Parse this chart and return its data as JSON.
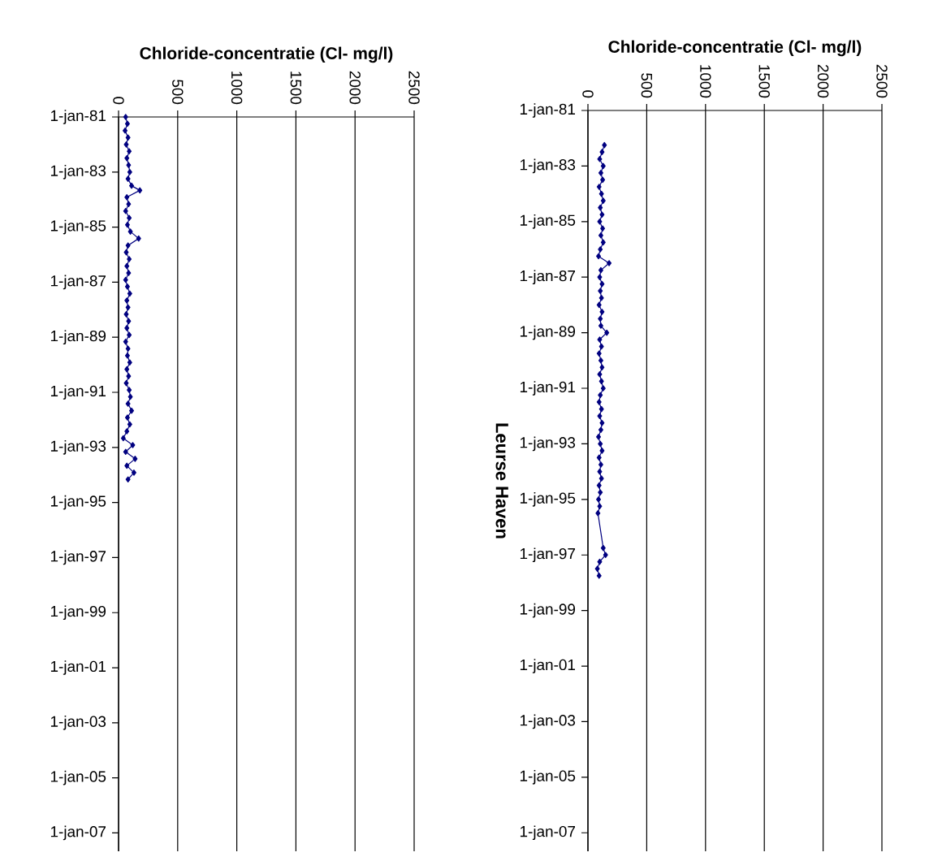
{
  "chart_data": [
    {
      "type": "line",
      "orientation": "horizontal",
      "xlabel": "Chloride-concentratie (Cl- mg/l)",
      "xlim": [
        0,
        2500
      ],
      "xticks": [
        0,
        500,
        1000,
        1500,
        2000,
        2500
      ],
      "ylim": [
        "2007-09-01",
        "1981-01-01"
      ],
      "yticks": [
        {
          "value": "1981-01-01",
          "label": "1-jan-81"
        },
        {
          "value": "1983-01-01",
          "label": "1-jan-83"
        },
        {
          "value": "1985-01-01",
          "label": "1-jan-85"
        },
        {
          "value": "1987-01-01",
          "label": "1-jan-87"
        },
        {
          "value": "1989-01-01",
          "label": "1-jan-89"
        },
        {
          "value": "1991-01-01",
          "label": "1-jan-91"
        },
        {
          "value": "1993-01-01",
          "label": "1-jan-93"
        },
        {
          "value": "1995-01-01",
          "label": "1-jan-95"
        },
        {
          "value": "1997-01-01",
          "label": "1-jan-97"
        },
        {
          "value": "1999-01-01",
          "label": "1-jan-99"
        },
        {
          "value": "2001-01-01",
          "label": "1-jan-01"
        },
        {
          "value": "2003-01-01",
          "label": "1-jan-03"
        },
        {
          "value": "2005-01-01",
          "label": "1-jan-05"
        },
        {
          "value": "2007-01-01",
          "label": "1-jan-07"
        }
      ],
      "grid": "x",
      "marker": "diamond",
      "line_style": "solid",
      "x": [
        "1981-01",
        "1981-04",
        "1981-07",
        "1981-10",
        "1982-01",
        "1982-04",
        "1982-07",
        "1982-10",
        "1983-01",
        "1983-04",
        "1983-07",
        "1983-09",
        "1983-12",
        "1984-03",
        "1984-06",
        "1984-09",
        "1984-12",
        "1985-03",
        "1985-06",
        "1985-09",
        "1985-12",
        "1986-03",
        "1986-06",
        "1986-09",
        "1986-12",
        "1987-03",
        "1987-06",
        "1987-09",
        "1987-12",
        "1988-03",
        "1988-06",
        "1988-09",
        "1988-12",
        "1989-03",
        "1989-06",
        "1989-09",
        "1989-12",
        "1990-03",
        "1990-06",
        "1990-09",
        "1990-12",
        "1991-03",
        "1991-06",
        "1991-09",
        "1991-12",
        "1992-03",
        "1992-06",
        "1992-09",
        "1992-12",
        "1993-03",
        "1993-06",
        "1993-09",
        "1993-12",
        "1994-03"
      ],
      "series": [
        {
          "color": "#000080",
          "values": [
            60,
            75,
            55,
            80,
            65,
            90,
            70,
            85,
            95,
            80,
            110,
            180,
            70,
            85,
            60,
            90,
            75,
            100,
            170,
            80,
            65,
            90,
            70,
            85,
            60,
            75,
            95,
            70,
            80,
            65,
            85,
            70,
            90,
            60,
            80,
            75,
            95,
            70,
            85,
            65,
            90,
            100,
            80,
            110,
            75,
            95,
            70,
            40,
            120,
            60,
            140,
            70,
            130,
            80
          ]
        }
      ]
    },
    {
      "type": "line",
      "orientation": "horizontal",
      "xlabel": "Chloride-concentratie (Cl- mg/l)",
      "ylabel": "Leurse Haven",
      "xlim": [
        0,
        2500
      ],
      "xticks": [
        0,
        500,
        1000,
        1500,
        2000,
        2500
      ],
      "ylim": [
        "2007-09-01",
        "1981-01-01"
      ],
      "yticks": [
        {
          "value": "1981-01-01",
          "label": "1-jan-81"
        },
        {
          "value": "1983-01-01",
          "label": "1-jan-83"
        },
        {
          "value": "1985-01-01",
          "label": "1-jan-85"
        },
        {
          "value": "1987-01-01",
          "label": "1-jan-87"
        },
        {
          "value": "1989-01-01",
          "label": "1-jan-89"
        },
        {
          "value": "1991-01-01",
          "label": "1-jan-91"
        },
        {
          "value": "1993-01-01",
          "label": "1-jan-93"
        },
        {
          "value": "1995-01-01",
          "label": "1-jan-95"
        },
        {
          "value": "1997-01-01",
          "label": "1-jan-97"
        },
        {
          "value": "1999-01-01",
          "label": "1-jan-99"
        },
        {
          "value": "2001-01-01",
          "label": "1-jan-01"
        },
        {
          "value": "2003-01-01",
          "label": "1-jan-03"
        },
        {
          "value": "2005-01-01",
          "label": "1-jan-05"
        },
        {
          "value": "2007-01-01",
          "label": "1-jan-07"
        }
      ],
      "grid": "x",
      "marker": "diamond",
      "line_style": "solid",
      "x": [
        "1982-04",
        "1982-07",
        "1982-10",
        "1983-01",
        "1983-04",
        "1983-07",
        "1983-10",
        "1984-01",
        "1984-04",
        "1984-07",
        "1984-10",
        "1985-01",
        "1985-04",
        "1985-07",
        "1985-10",
        "1986-01",
        "1986-04",
        "1986-07",
        "1986-10",
        "1987-01",
        "1987-04",
        "1987-07",
        "1987-10",
        "1988-01",
        "1988-04",
        "1988-07",
        "1988-10",
        "1989-01",
        "1989-04",
        "1989-07",
        "1989-10",
        "1990-01",
        "1990-04",
        "1990-07",
        "1990-10",
        "1991-01",
        "1991-04",
        "1991-07",
        "1991-10",
        "1992-01",
        "1992-04",
        "1992-07",
        "1992-10",
        "1993-01",
        "1993-04",
        "1993-07",
        "1993-10",
        "1994-01",
        "1994-04",
        "1994-07",
        "1994-10",
        "1995-01",
        "1995-04",
        "1995-07",
        "1996-10",
        "1997-01",
        "1997-04",
        "1997-07",
        "1997-10"
      ],
      "series": [
        {
          "color": "#000080",
          "values": [
            140,
            120,
            100,
            130,
            110,
            125,
            95,
            115,
            130,
            105,
            120,
            100,
            125,
            110,
            130,
            105,
            90,
            180,
            110,
            100,
            120,
            105,
            115,
            95,
            120,
            105,
            110,
            160,
            100,
            115,
            95,
            110,
            120,
            100,
            115,
            130,
            105,
            95,
            115,
            100,
            120,
            110,
            90,
            105,
            120,
            95,
            110,
            100,
            115,
            95,
            105,
            90,
            100,
            85,
            130,
            150,
            100,
            80,
            95
          ]
        }
      ]
    }
  ]
}
